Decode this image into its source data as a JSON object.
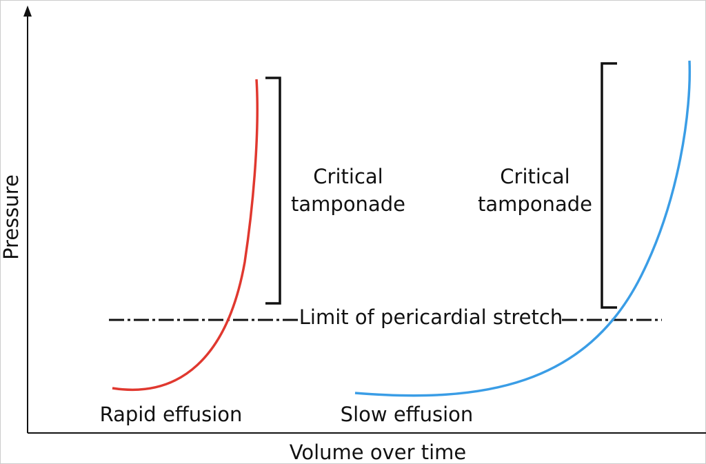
{
  "axes": {
    "y_label": "Pressure",
    "x_label": "Volume over time"
  },
  "limit_line": {
    "label": "Limit of pericardial stretch"
  },
  "curves": [
    {
      "label": "Rapid effusion",
      "bracket_label": [
        "Critical",
        "tamponade"
      ]
    },
    {
      "label": "Slow effusion",
      "bracket_label": [
        "Critical",
        "tamponade"
      ]
    }
  ]
}
